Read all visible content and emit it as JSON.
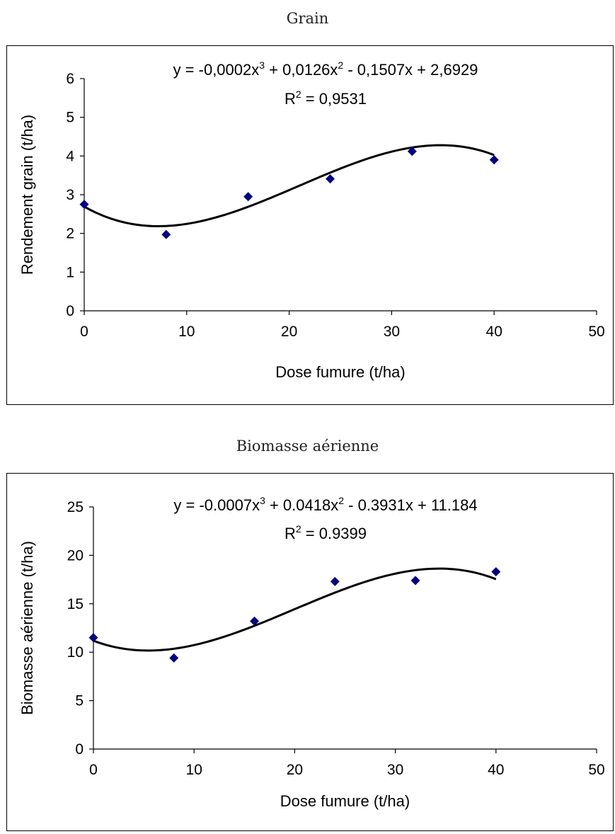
{
  "chart_data": [
    {
      "type": "scatter",
      "title": "Grain",
      "xlabel": "Dose fumure (t/ha)",
      "ylabel": "Rendement grain (t/ha)",
      "xlim": [
        0,
        50
      ],
      "ylim": [
        0,
        6
      ],
      "xticks": [
        "0",
        "10",
        "20",
        "30",
        "40",
        "50"
      ],
      "yticks": [
        "0",
        "1",
        "2",
        "3",
        "4",
        "5",
        "6"
      ],
      "grid": false,
      "series": [
        {
          "x": [
            0,
            8,
            16,
            24,
            32,
            40
          ],
          "y": [
            2.75,
            1.97,
            2.95,
            3.41,
            4.12,
            3.9
          ],
          "color": "#000080",
          "marker": "diamond"
        }
      ],
      "trendline": {
        "type": "polynomial",
        "order": 3,
        "coefficients": [
          -0.0002,
          0.0126,
          -0.1507,
          2.6929
        ],
        "color": "#000000"
      },
      "equation": {
        "y_part": "y = -0,0002x",
        "sup1": "3",
        "part2": " + 0,0126x",
        "sup2": "2",
        "part3": " - 0,1507x + 2,6929"
      },
      "r2": {
        "label": "R",
        "sup": "2",
        "value": " = 0,9531"
      }
    },
    {
      "type": "scatter",
      "title": "Biomasse aérienne",
      "xlabel": "Dose fumure (t/ha)",
      "ylabel": "Biomasse aérienne (t/ha)",
      "xlim": [
        0,
        50
      ],
      "ylim": [
        0,
        25
      ],
      "xticks": [
        "0",
        "10",
        "20",
        "30",
        "40",
        "50"
      ],
      "yticks": [
        "0",
        "5",
        "10",
        "15",
        "20",
        "25"
      ],
      "grid": false,
      "series": [
        {
          "x": [
            0,
            8,
            16,
            24,
            32,
            40
          ],
          "y": [
            11.5,
            9.4,
            13.2,
            17.3,
            17.4,
            18.3
          ],
          "color": "#000080",
          "marker": "diamond"
        }
      ],
      "trendline": {
        "type": "polynomial",
        "order": 3,
        "coefficients": [
          -0.0007,
          0.0418,
          -0.3931,
          11.184
        ],
        "color": "#000000"
      },
      "equation": {
        "y_part": "y = -0.0007x",
        "sup1": "3",
        "part2": " + 0.0418x",
        "sup2": "2",
        "part3": " - 0.3931x + 11.184"
      },
      "r2": {
        "label": "R",
        "sup": "2",
        "value": " = 0.9399"
      }
    }
  ]
}
